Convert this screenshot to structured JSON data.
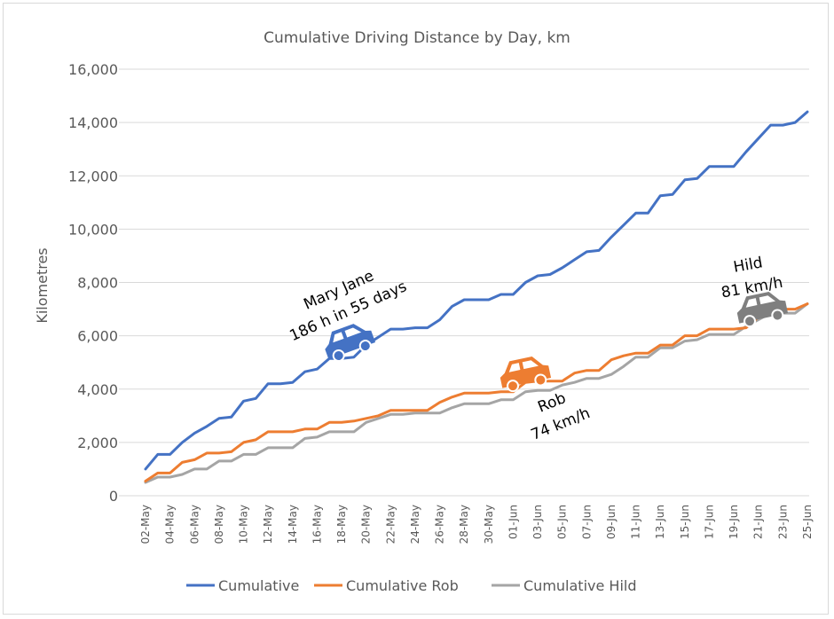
{
  "chart_data": {
    "type": "line",
    "title": "Cumulative Driving Distance by Day, km",
    "xlabel": "",
    "ylabel": "Kilometres",
    "ylim": [
      0,
      16000
    ],
    "y_ticks": [
      "0",
      "2,000",
      "4,000",
      "6,000",
      "8,000",
      "10,000",
      "12,000",
      "14,000",
      "16,000"
    ],
    "y_tick_values": [
      0,
      2000,
      4000,
      6000,
      8000,
      10000,
      12000,
      14000,
      16000
    ],
    "grid": "horizontal",
    "legend_position": "bottom",
    "x_ticks": [
      "02-May",
      "04-May",
      "06-May",
      "08-May",
      "10-May",
      "12-May",
      "14-May",
      "16-May",
      "18-May",
      "20-May",
      "22-May",
      "24-May",
      "26-May",
      "28-May",
      "30-May",
      "01-Jun",
      "03-Jun",
      "05-Jun",
      "07-Jun",
      "09-Jun",
      "11-Jun",
      "13-Jun",
      "15-Jun",
      "17-Jun",
      "19-Jun",
      "21-Jun",
      "23-Jun",
      "25-Jun"
    ],
    "x": [
      "02-May",
      "03-May",
      "04-May",
      "05-May",
      "06-May",
      "07-May",
      "08-May",
      "09-May",
      "10-May",
      "11-May",
      "12-May",
      "13-May",
      "14-May",
      "15-May",
      "16-May",
      "17-May",
      "18-May",
      "19-May",
      "20-May",
      "21-May",
      "22-May",
      "23-May",
      "24-May",
      "25-May",
      "26-May",
      "27-May",
      "28-May",
      "29-May",
      "30-May",
      "31-May",
      "01-Jun",
      "02-Jun",
      "03-Jun",
      "04-Jun",
      "05-Jun",
      "06-Jun",
      "07-Jun",
      "08-Jun",
      "09-Jun",
      "10-Jun",
      "11-Jun",
      "12-Jun",
      "13-Jun",
      "14-Jun",
      "15-Jun",
      "16-Jun",
      "17-Jun",
      "18-Jun",
      "19-Jun",
      "20-Jun",
      "21-Jun",
      "22-Jun",
      "23-Jun",
      "24-Jun",
      "25-Jun"
    ],
    "series": [
      {
        "name": "Cumulative",
        "color": "#4472c4",
        "values": [
          1000,
          1550,
          1550,
          2000,
          2350,
          2600,
          2900,
          2950,
          3550,
          3650,
          4200,
          4200,
          4250,
          4650,
          4750,
          5150,
          5150,
          5200,
          5650,
          5950,
          6250,
          6250,
          6300,
          6300,
          6600,
          7100,
          7350,
          7350,
          7350,
          7550,
          7550,
          8000,
          8250,
          8300,
          8550,
          8850,
          9150,
          9200,
          9700,
          10150,
          10600,
          10600,
          11250,
          11300,
          11850,
          11900,
          12350,
          12350,
          12350,
          12900,
          13400,
          13900,
          13900,
          14000,
          14400
        ]
      },
      {
        "name": "Cumulative Rob",
        "color": "#ed7d31",
        "values": [
          550,
          850,
          850,
          1250,
          1350,
          1600,
          1600,
          1650,
          2000,
          2100,
          2400,
          2400,
          2400,
          2500,
          2500,
          2750,
          2750,
          2800,
          2900,
          3000,
          3200,
          3200,
          3200,
          3200,
          3500,
          3700,
          3850,
          3850,
          3850,
          3900,
          3900,
          4250,
          4300,
          4300,
          4300,
          4600,
          4700,
          4700,
          5100,
          5250,
          5350,
          5350,
          5650,
          5650,
          6000,
          6000,
          6250,
          6250,
          6250,
          6300,
          6700,
          6950,
          7000,
          7000,
          7200
        ]
      },
      {
        "name": "Cumulative Hild",
        "color": "#a5a5a5",
        "values": [
          500,
          700,
          700,
          800,
          1000,
          1000,
          1300,
          1300,
          1550,
          1550,
          1800,
          1800,
          1800,
          2150,
          2200,
          2400,
          2400,
          2400,
          2750,
          2900,
          3050,
          3050,
          3100,
          3100,
          3100,
          3300,
          3450,
          3450,
          3450,
          3600,
          3600,
          3900,
          3950,
          3950,
          4150,
          4250,
          4400,
          4400,
          4550,
          4850,
          5200,
          5200,
          5550,
          5550,
          5800,
          5850,
          6050,
          6050,
          6050,
          6350,
          6600,
          6850,
          6850,
          6850,
          7200
        ]
      }
    ],
    "annotations": [
      {
        "id": "mary",
        "lines": [
          "Mary Jane",
          "186 h in 55 days"
        ],
        "color": "#4472c4"
      },
      {
        "id": "rob",
        "lines": [
          "Rob",
          "74 km/h"
        ],
        "color": "#ed7d31"
      },
      {
        "id": "hild",
        "lines": [
          "Hild",
          "81 km/h"
        ],
        "color": "#7f7f7f"
      }
    ]
  },
  "icons": [
    "car-icon-blue",
    "car-icon-orange",
    "car-icon-gray"
  ]
}
